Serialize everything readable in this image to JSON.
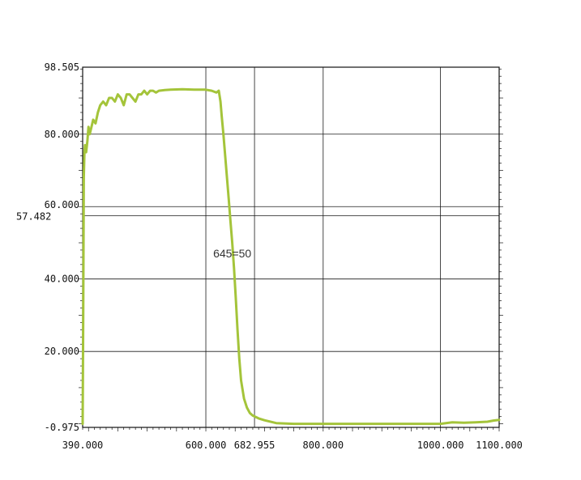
{
  "chart_data": {
    "type": "line",
    "title": "",
    "xlabel": "",
    "ylabel": "",
    "xlim": [
      390,
      1100
    ],
    "ylim": [
      -0.975,
      98.505
    ],
    "grid": true,
    "x_ticks": [
      {
        "value": 390,
        "label": "390.000"
      },
      {
        "value": 600,
        "label": "600.000"
      },
      {
        "value": 682.955,
        "label": "682.955"
      },
      {
        "value": 800,
        "label": "800.000"
      },
      {
        "value": 1000,
        "label": "1000.000"
      },
      {
        "value": 1100,
        "label": "1100.000"
      }
    ],
    "y_ticks": [
      {
        "value": -0.975,
        "label": "-0.975"
      },
      {
        "value": 20,
        "label": "20.000"
      },
      {
        "value": 40,
        "label": "40.000"
      },
      {
        "value": 57.482,
        "label": "57.482"
      },
      {
        "value": 60,
        "label": "60.000"
      },
      {
        "value": 80,
        "label": "80.000"
      },
      {
        "value": 98.505,
        "label": "98.505"
      }
    ],
    "annotation": {
      "text": "645=50",
      "x": 654,
      "y": 46
    },
    "series": [
      {
        "color": "#a4c43a",
        "x": [
          390,
          391,
          392,
          393,
          394,
          396,
          398,
          400,
          402,
          405,
          408,
          412,
          416,
          420,
          425,
          430,
          435,
          440,
          445,
          450,
          455,
          460,
          465,
          470,
          475,
          480,
          485,
          490,
          495,
          500,
          505,
          510,
          515,
          520,
          530,
          540,
          560,
          580,
          600,
          610,
          618,
          622,
          625,
          627,
          630,
          633,
          636,
          639,
          642,
          645,
          648,
          651,
          654,
          657,
          660,
          665,
          670,
          675,
          680,
          690,
          700,
          720,
          750,
          800,
          850,
          900,
          950,
          1000,
          1020,
          1040,
          1060,
          1080,
          1090,
          1100
        ],
        "y": [
          0,
          30,
          68,
          75,
          77,
          75,
          78,
          82,
          80,
          82,
          84,
          83,
          86,
          88,
          89,
          88,
          90,
          90,
          89,
          91,
          90,
          88,
          91,
          91,
          90,
          89,
          91,
          91,
          92,
          91,
          92,
          92,
          91.5,
          92,
          92.2,
          92.3,
          92.4,
          92.3,
          92.3,
          92,
          91.5,
          92,
          89,
          85,
          80,
          74,
          68,
          62,
          56,
          50,
          43,
          35,
          26,
          18,
          12,
          7,
          4.5,
          3,
          2.3,
          1.5,
          1,
          0.2,
          0,
          0,
          0,
          0,
          0,
          0,
          0.4,
          0.3,
          0.4,
          0.6,
          0.9,
          1.1
        ]
      }
    ]
  }
}
